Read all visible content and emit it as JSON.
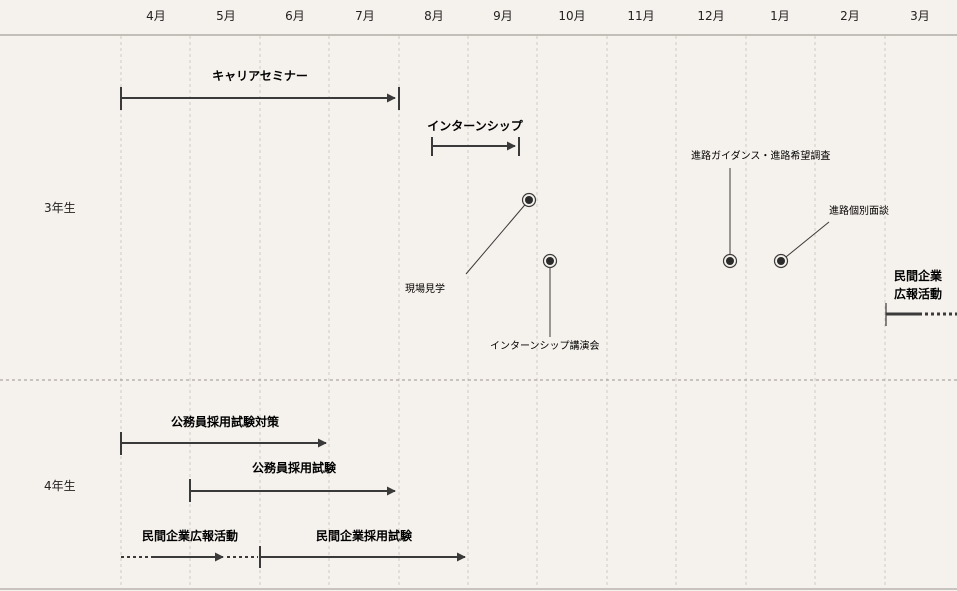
{
  "months": [
    "4月",
    "5月",
    "6月",
    "7月",
    "8月",
    "9月",
    "10月",
    "11月",
    "12月",
    "1月",
    "2月",
    "3月"
  ],
  "rows": {
    "year3": "3年生",
    "year4": "4年生"
  },
  "year3": {
    "career_seminar": "キャリアセミナー",
    "internship": "インターンシップ",
    "site_visit": "現場見学",
    "internship_lecture": "インターンシップ講演会",
    "guidance": "進路ガイダンス・進路希望調査",
    "interview": "進路個別面談",
    "pr_line1": "民間企業",
    "pr_line2": "広報活動"
  },
  "year4": {
    "exam_prep": "公務員採用試験対策",
    "exam": "公務員採用試験",
    "pr": "民間企業広報活動",
    "private_exam": "民間企業採用試験"
  },
  "colors": {
    "background": "#f5f1ec",
    "ink": "#3a3a3a",
    "grid": "#cfcac3"
  }
}
